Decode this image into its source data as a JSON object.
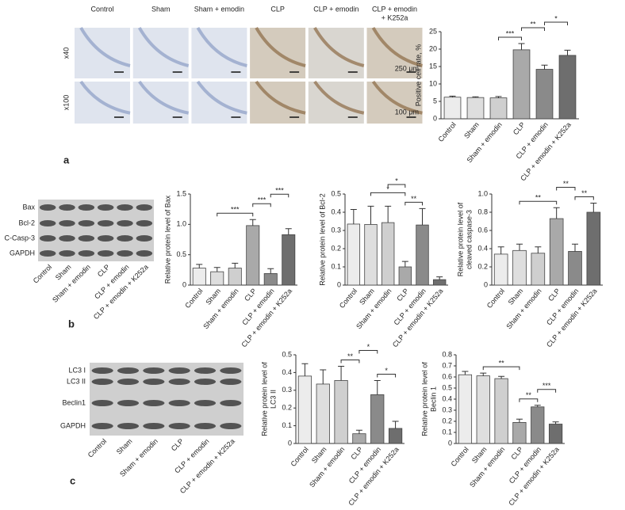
{
  "panels": {
    "letters": [
      "a",
      "b",
      "c"
    ],
    "image_columns": [
      [
        "Control"
      ],
      [
        "Sham"
      ],
      [
        "Sham + emodin"
      ],
      [
        "CLP"
      ],
      [
        "CLP + emodin"
      ],
      [
        "CLP + emodin",
        "+ K252a"
      ]
    ],
    "image_rows": [
      "x40",
      "x100"
    ],
    "scale_bars": [
      "250 μm",
      "100 μm"
    ],
    "blots": [
      {
        "bands": [
          "Bax",
          "Bcl-2",
          "C-Casp-3",
          "GAPDH"
        ],
        "lanes": [
          "Control",
          "Sham",
          "Sham + emodin",
          "CLP",
          "CLP + emodin",
          "CLP + emodin + K252a"
        ]
      },
      {
        "bands": [
          "LC3 I",
          "LC3 II",
          "Beclin1",
          "GAPDH"
        ],
        "lanes": [
          "Control",
          "Sham",
          "Sham + emodin",
          "CLP",
          "CLP + emodin",
          "CLP + emodin + K252a"
        ]
      }
    ]
  },
  "chart_data": [
    {
      "type": "bar",
      "ylabel": [
        "Positive cell rate, %"
      ],
      "categories": [
        "Control",
        "Sham",
        "Sham + emodin",
        "CLP",
        "CLP + emodin",
        "CLP + emodin + K252a"
      ],
      "values": [
        6.2,
        6.1,
        6.0,
        19.8,
        14.2,
        18.2
      ],
      "errors": [
        0.3,
        0.2,
        0.4,
        1.8,
        1.2,
        1.5
      ],
      "colors": [
        "#ececec",
        "#dedede",
        "#cfcfcf",
        "#a9a9a9",
        "#8a8a8a",
        "#6e6e6e"
      ],
      "ylim": [
        0,
        25
      ],
      "yticks": [
        0,
        5,
        10,
        15,
        20,
        25
      ],
      "annotations": [
        {
          "text": "***",
          "from": "Sham + emodin",
          "to": "CLP"
        },
        {
          "text": "**",
          "from": "CLP",
          "to": "CLP + emodin"
        },
        {
          "text": "*",
          "from": "CLP + emodin",
          "to": "CLP + emodin + K252a"
        }
      ]
    },
    {
      "type": "bar",
      "ylabel": [
        "Relative protein level of Bax"
      ],
      "categories": [
        "Control",
        "Sham",
        "Sham + emodin",
        "CLP",
        "CLP + emodin",
        "CLP + emodin + K252a"
      ],
      "values": [
        0.28,
        0.22,
        0.28,
        0.98,
        0.19,
        0.83
      ],
      "errors": [
        0.06,
        0.07,
        0.08,
        0.1,
        0.08,
        0.1
      ],
      "colors": [
        "#ececec",
        "#dedede",
        "#cfcfcf",
        "#a9a9a9",
        "#8a8a8a",
        "#6e6e6e"
      ],
      "ylim": [
        0,
        1.5
      ],
      "yticks": [
        0,
        0.5,
        {
          "value": 1,
          "label": "1.0"
        },
        1.5
      ],
      "annotations": [
        {
          "text": "***",
          "from": "Sham",
          "to": "CLP"
        },
        {
          "text": "***",
          "from": "CLP",
          "to": "CLP + emodin"
        },
        {
          "text": "***",
          "from": "CLP + emodin",
          "to": "CLP + emodin + K252a"
        }
      ]
    },
    {
      "type": "bar",
      "ylabel": [
        "Relative protein level of Bcl-2"
      ],
      "categories": [
        "Control",
        "Sham",
        "Sham + emodin",
        "CLP",
        "CLP + emodin",
        "CLP + emodin + K252a"
      ],
      "values": [
        0.335,
        0.333,
        0.343,
        0.1,
        0.33,
        0.03
      ],
      "errors": [
        0.08,
        0.1,
        0.09,
        0.03,
        0.09,
        0.015
      ],
      "colors": [
        "#ececec",
        "#dedede",
        "#cfcfcf",
        "#a9a9a9",
        "#8a8a8a",
        "#6e6e6e"
      ],
      "ylim": [
        0,
        0.5
      ],
      "yticks": [
        0,
        0.1,
        0.2,
        0.3,
        0.4,
        0.5
      ],
      "annotations": [
        {
          "text": "**",
          "from": "CLP",
          "to": "CLP + emodin"
        },
        {
          "text": "*",
          "from": "Sham",
          "to": "CLP"
        },
        {
          "text": "*",
          "from": "Sham + emodin",
          "to": "CLP"
        }
      ]
    },
    {
      "type": "bar",
      "ylabel": [
        "Relative protein level of",
        "cleaved caspase-3"
      ],
      "categories": [
        "Control",
        "Sham",
        "Sham + emodin",
        "CLP",
        "CLP + emodin",
        "CLP + emodin + K252a"
      ],
      "values": [
        0.34,
        0.38,
        0.35,
        0.73,
        0.37,
        0.8
      ],
      "errors": [
        0.08,
        0.07,
        0.07,
        0.12,
        0.08,
        0.1
      ],
      "colors": [
        "#ececec",
        "#dedede",
        "#cfcfcf",
        "#a9a9a9",
        "#8a8a8a",
        "#6e6e6e"
      ],
      "ylim": [
        0,
        1
      ],
      "yticks": [
        0,
        0.2,
        0.4,
        0.6,
        0.8,
        {
          "value": 1,
          "label": "1.0"
        }
      ],
      "annotations": [
        {
          "text": "**",
          "from": "Sham",
          "to": "CLP"
        },
        {
          "text": "**",
          "from": "CLP + emodin",
          "to": "CLP + emodin + K252a"
        },
        {
          "text": "**",
          "from": "CLP",
          "to": "CLP + emodin"
        }
      ]
    },
    {
      "type": "bar",
      "ylabel": [
        "Relative protein level of",
        "LC3 II"
      ],
      "categories": [
        "Control",
        "Sham",
        "Sham + emodin",
        "CLP",
        "CLP + emodin",
        "CLP + emodin + K252a"
      ],
      "values": [
        0.38,
        0.335,
        0.355,
        0.055,
        0.275,
        0.085
      ],
      "errors": [
        0.07,
        0.08,
        0.08,
        0.02,
        0.08,
        0.04
      ],
      "colors": [
        "#ececec",
        "#dedede",
        "#cfcfcf",
        "#a9a9a9",
        "#8a8a8a",
        "#6e6e6e"
      ],
      "ylim": [
        0,
        0.5
      ],
      "yticks": [
        0,
        0.1,
        0.2,
        0.3,
        0.4,
        0.5
      ],
      "annotations": [
        {
          "text": "*",
          "from": "CLP + emodin",
          "to": "CLP + emodin + K252a"
        },
        {
          "text": "**",
          "from": "Sham + emodin",
          "to": "CLP"
        },
        {
          "text": "*",
          "from": "CLP",
          "to": "CLP + emodin"
        }
      ]
    },
    {
      "type": "bar",
      "ylabel": [
        "Relative protein level of",
        "Beclin 1"
      ],
      "categories": [
        "Control",
        "Sham",
        "Sham + emodin",
        "CLP",
        "CLP + emodin",
        "CLP + emodin + K252a"
      ],
      "values": [
        0.62,
        0.61,
        0.585,
        0.19,
        0.33,
        0.175
      ],
      "errors": [
        0.03,
        0.025,
        0.02,
        0.03,
        0.015,
        0.02
      ],
      "colors": [
        "#ececec",
        "#dedede",
        "#cfcfcf",
        "#a9a9a9",
        "#8a8a8a",
        "#6e6e6e"
      ],
      "ylim": [
        0,
        0.8
      ],
      "yticks": [
        0,
        0.1,
        0.2,
        0.3,
        0.4,
        0.5,
        0.6,
        0.7,
        0.8
      ],
      "annotations": [
        {
          "text": "**",
          "from": "CLP",
          "to": "CLP + emodin"
        },
        {
          "text": "***",
          "from": "CLP + emodin",
          "to": "CLP + emodin + K252a"
        },
        {
          "text": "**",
          "from": "Sham",
          "to": "CLP"
        }
      ]
    }
  ]
}
